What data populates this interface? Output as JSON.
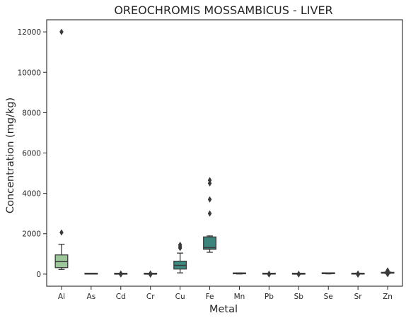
{
  "chart_data": {
    "type": "box",
    "title": "OREOCHROMIS MOSSAMBICUS - LIVER",
    "xlabel": "Metal",
    "ylabel": "Concentration (mg/kg)",
    "ylim": [
      -600,
      12600
    ],
    "yticks": [
      0,
      2000,
      4000,
      6000,
      8000,
      10000,
      12000
    ],
    "categories": [
      "Al",
      "As",
      "Cd",
      "Cr",
      "Cu",
      "Fe",
      "Mn",
      "Pb",
      "Sb",
      "Se",
      "Sr",
      "Zn"
    ],
    "colors": [
      "#9dc79a",
      "#8fbe91",
      "#83b58b",
      "#77ac86",
      "#3d8a80",
      "#3c857d",
      "#5a8f86",
      "#4f887f",
      "#45827b",
      "#3c7c77",
      "#347573",
      "#2e6e6e"
    ],
    "boxes": [
      {
        "category": "Al",
        "whislo": 230,
        "q1": 320,
        "med": 620,
        "q3": 950,
        "whishi": 1480,
        "fliers": [
          2060,
          12000
        ]
      },
      {
        "category": "As",
        "whislo": 0,
        "q1": 2,
        "med": 5,
        "q3": 8,
        "whishi": 15,
        "fliers": []
      },
      {
        "category": "Cd",
        "whislo": 0,
        "q1": 1,
        "med": 2,
        "q3": 3,
        "whishi": 8,
        "fliers": [
          -20,
          12,
          25
        ]
      },
      {
        "category": "Cr",
        "whislo": 0,
        "q1": 1,
        "med": 2,
        "q3": 4,
        "whishi": 10,
        "fliers": [
          -25,
          15,
          30
        ]
      },
      {
        "category": "Cu",
        "whislo": 60,
        "q1": 250,
        "med": 430,
        "q3": 640,
        "whishi": 1040,
        "fliers": [
          1290,
          1360,
          1450
        ]
      },
      {
        "category": "Fe",
        "whislo": 1080,
        "q1": 1230,
        "med": 1310,
        "q3": 1840,
        "whishi": 1890,
        "fliers": [
          3000,
          3700,
          4500,
          4650
        ]
      },
      {
        "category": "Mn",
        "whislo": 5,
        "q1": 15,
        "med": 25,
        "q3": 40,
        "whishi": 55,
        "fliers": []
      },
      {
        "category": "Pb",
        "whislo": 0,
        "q1": 2,
        "med": 4,
        "q3": 6,
        "whishi": 10,
        "fliers": [
          -20,
          15
        ]
      },
      {
        "category": "Sb",
        "whislo": 0,
        "q1": 1,
        "med": 2,
        "q3": 3,
        "whishi": 8,
        "fliers": [
          -20,
          12
        ]
      },
      {
        "category": "Se",
        "whislo": 10,
        "q1": 20,
        "med": 30,
        "q3": 45,
        "whishi": 60,
        "fliers": []
      },
      {
        "category": "Sr",
        "whislo": 0,
        "q1": 2,
        "med": 4,
        "q3": 6,
        "whishi": 10,
        "fliers": [
          -25,
          10,
          25
        ]
      },
      {
        "category": "Zn",
        "whislo": 30,
        "q1": 45,
        "med": 65,
        "q3": 80,
        "whishi": 110,
        "fliers": [
          0,
          60,
          120,
          180
        ]
      }
    ]
  }
}
